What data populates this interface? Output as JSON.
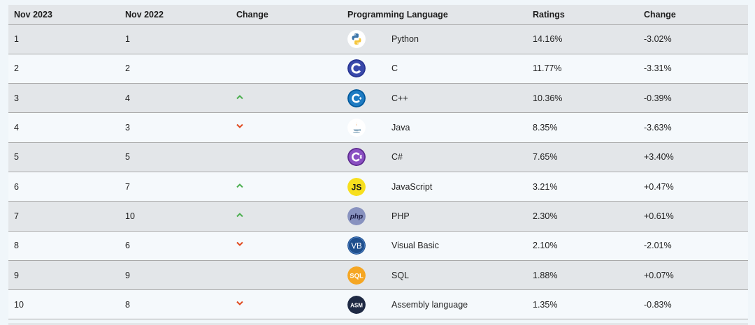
{
  "table": {
    "headers": {
      "rank_now": "Nov 2023",
      "rank_prev": "Nov 2022",
      "change": "Change",
      "language": "Programming Language",
      "ratings": "Ratings",
      "rating_change": "Change"
    },
    "rows": [
      {
        "rank_now": "1",
        "rank_prev": "1",
        "trend": "none",
        "logo": "python-logo-icon",
        "language": "Python",
        "ratings": "14.16%",
        "rating_change": "-3.02%"
      },
      {
        "rank_now": "2",
        "rank_prev": "2",
        "trend": "none",
        "logo": "c-logo-icon",
        "language": "C",
        "ratings": "11.77%",
        "rating_change": "-3.31%"
      },
      {
        "rank_now": "3",
        "rank_prev": "4",
        "trend": "up",
        "logo": "cpp-logo-icon",
        "language": "C++",
        "ratings": "10.36%",
        "rating_change": "-0.39%"
      },
      {
        "rank_now": "4",
        "rank_prev": "3",
        "trend": "down",
        "logo": "java-logo-icon",
        "language": "Java",
        "ratings": "8.35%",
        "rating_change": "-3.63%"
      },
      {
        "rank_now": "5",
        "rank_prev": "5",
        "trend": "none",
        "logo": "csharp-logo-icon",
        "language": "C#",
        "ratings": "7.65%",
        "rating_change": "+3.40%"
      },
      {
        "rank_now": "6",
        "rank_prev": "7",
        "trend": "up",
        "logo": "javascript-logo-icon",
        "language": "JavaScript",
        "ratings": "3.21%",
        "rating_change": "+0.47%"
      },
      {
        "rank_now": "7",
        "rank_prev": "10",
        "trend": "up",
        "logo": "php-logo-icon",
        "language": "PHP",
        "ratings": "2.30%",
        "rating_change": "+0.61%"
      },
      {
        "rank_now": "8",
        "rank_prev": "6",
        "trend": "down",
        "logo": "visual-basic-logo-icon",
        "language": "Visual Basic",
        "ratings": "2.10%",
        "rating_change": "-2.01%"
      },
      {
        "rank_now": "9",
        "rank_prev": "9",
        "trend": "none",
        "logo": "sql-logo-icon",
        "language": "SQL",
        "ratings": "1.88%",
        "rating_change": "+0.07%"
      },
      {
        "rank_now": "10",
        "rank_prev": "8",
        "trend": "down",
        "logo": "assembly-logo-icon",
        "language": "Assembly language",
        "ratings": "1.35%",
        "rating_change": "-0.83%"
      }
    ]
  },
  "logo_text": {
    "javascript": "JS",
    "php": "php",
    "visual_basic": "VB",
    "sql": "SQL",
    "assembly": "ASM"
  },
  "colors": {
    "row_odd": "#e3e6e9",
    "row_even": "#f5f9fc",
    "trend_up": "#4caf50",
    "trend_down": "#e04a1f"
  }
}
